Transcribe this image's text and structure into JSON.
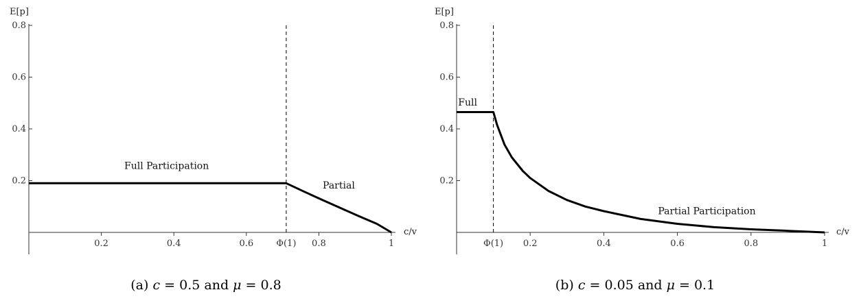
{
  "chart_data": [
    {
      "id": "a",
      "type": "line",
      "caption": "(a) c = 0.5 and μ = 0.8",
      "caption_parts": {
        "prefix": "(a) ",
        "c_symbol": "c",
        "equals1": " = ",
        "c_value": "0.5",
        "and": " and ",
        "mu_symbol": "μ",
        "equals2": " = ",
        "mu_value": "0.8"
      },
      "xlabel": "c/v",
      "ylabel": "E[p]",
      "xlim": [
        0,
        1
      ],
      "ylim": [
        0,
        0.8
      ],
      "x_ticks": [
        0.2,
        0.4,
        0.6,
        0.8,
        1
      ],
      "x_tick_labels": [
        "0.2",
        "0.4",
        "0.6",
        "0.8",
        "1"
      ],
      "y_ticks": [
        0.2,
        0.4,
        0.6,
        0.8
      ],
      "y_tick_labels": [
        "0.2",
        "0.4",
        "0.6",
        "0.8"
      ],
      "threshold": {
        "x": 0.71,
        "label": "Φ(1)"
      },
      "series": [
        {
          "x": [
            0,
            0.71,
            0.76,
            0.81,
            0.86,
            0.91,
            0.96,
            1.0
          ],
          "y": [
            0.19,
            0.19,
            0.157,
            0.125,
            0.094,
            0.063,
            0.033,
            0.0
          ]
        }
      ],
      "annotations": [
        {
          "text": "Full Participation",
          "x": 0.38,
          "y": 0.245
        },
        {
          "text": "Partial",
          "x": 0.855,
          "y": 0.17
        }
      ]
    },
    {
      "id": "b",
      "type": "line",
      "caption": "(b) c = 0.05 and μ = 0.1",
      "caption_parts": {
        "prefix": "(b) ",
        "c_symbol": "c",
        "equals1": " = ",
        "c_value": "0.05",
        "and": " and ",
        "mu_symbol": "μ",
        "equals2": " = ",
        "mu_value": "0.1"
      },
      "xlabel": "c/v",
      "ylabel": "E[p]",
      "xlim": [
        0,
        1
      ],
      "ylim": [
        0,
        0.8
      ],
      "x_ticks": [
        0.2,
        0.4,
        0.6,
        0.8,
        1
      ],
      "x_tick_labels": [
        "0.2",
        "0.4",
        "0.6",
        "0.8",
        "1"
      ],
      "y_ticks": [
        0.2,
        0.4,
        0.6,
        0.8
      ],
      "y_tick_labels": [
        "0.2",
        "0.4",
        "0.6",
        "0.8"
      ],
      "threshold": {
        "x": 0.1,
        "label": "Φ(1)"
      },
      "series": [
        {
          "x": [
            0,
            0.1,
            0.11,
            0.13,
            0.15,
            0.18,
            0.2,
            0.25,
            0.3,
            0.35,
            0.4,
            0.5,
            0.6,
            0.7,
            0.8,
            0.9,
            1.0
          ],
          "y": [
            0.465,
            0.465,
            0.415,
            0.34,
            0.29,
            0.237,
            0.21,
            0.16,
            0.125,
            0.1,
            0.082,
            0.052,
            0.033,
            0.02,
            0.012,
            0.006,
            0.0
          ]
        }
      ],
      "annotations": [
        {
          "text": "Full",
          "x": 0.03,
          "y": 0.49
        },
        {
          "text": "Partial Participation",
          "x": 0.68,
          "y": 0.07
        }
      ]
    }
  ]
}
